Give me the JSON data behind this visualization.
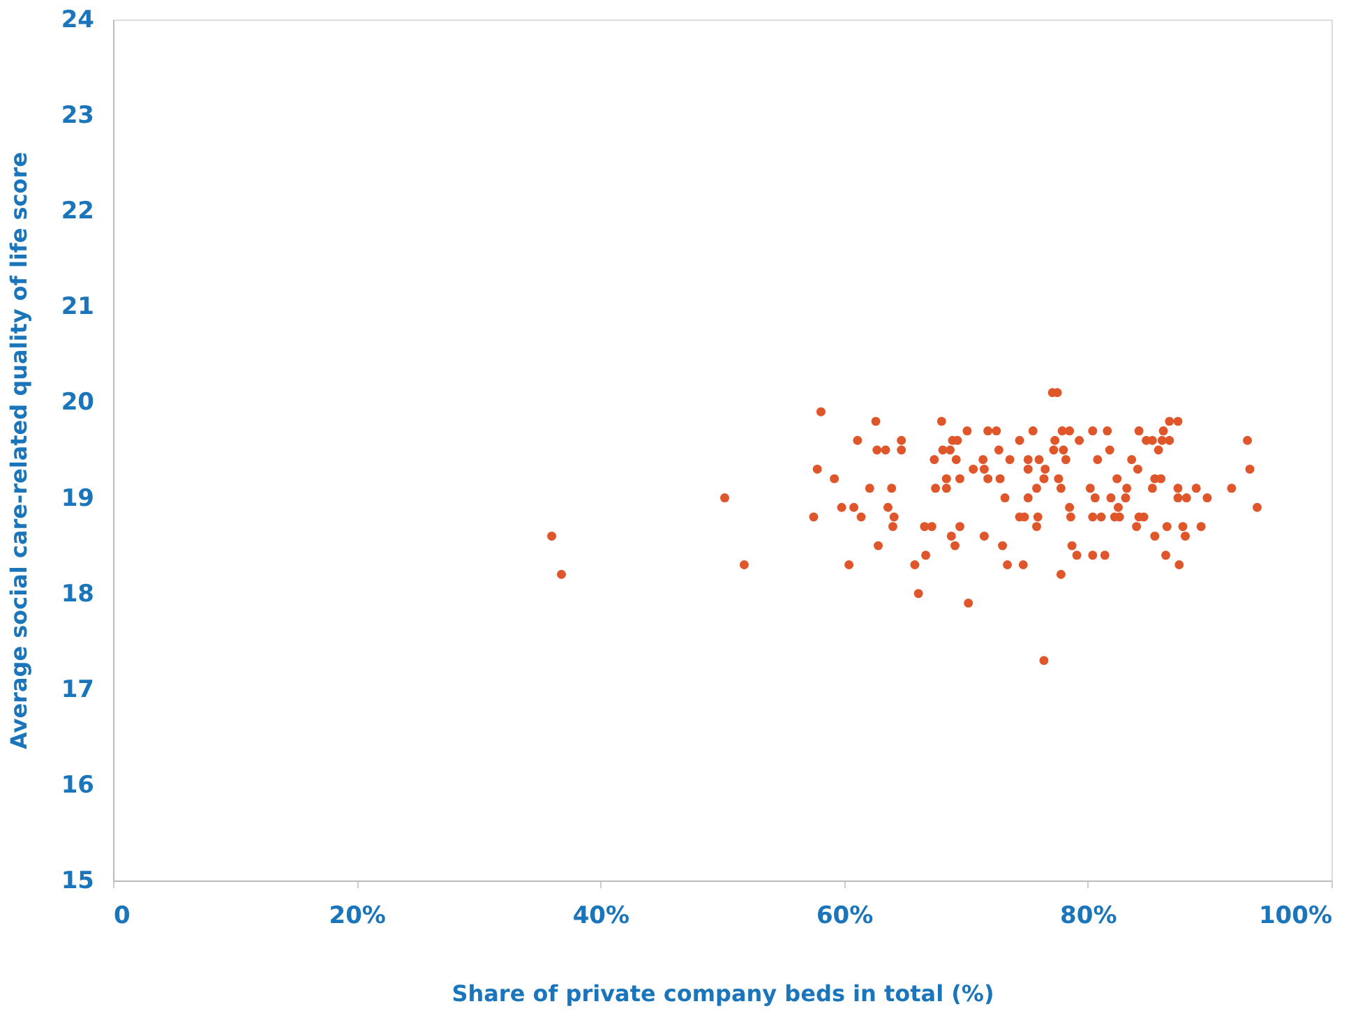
{
  "chart_data": {
    "type": "scatter",
    "xlabel": "Share of private company beds in total (%)",
    "ylabel": "Average social care-related quality of life score",
    "xlim": [
      0,
      100
    ],
    "xticks": [
      {
        "value": 0,
        "label": "0"
      },
      {
        "value": 20,
        "label": "20%"
      },
      {
        "value": 40,
        "label": "40%"
      },
      {
        "value": 60,
        "label": "60%"
      },
      {
        "value": 80,
        "label": "80%"
      },
      {
        "value": 100,
        "label": "100%"
      }
    ],
    "ylim": [
      15,
      24
    ],
    "yticks": [
      15,
      16,
      17,
      18,
      19,
      20,
      21,
      22,
      23,
      24
    ],
    "grid": false,
    "series": [
      {
        "color": "#e0562b",
        "x": [
          36.0,
          36.8,
          50.2,
          51.8,
          57.5,
          58.1,
          57.8,
          59.2,
          59.8,
          60.4,
          60.8,
          61.1,
          61.4,
          62.1,
          62.6,
          62.7,
          63.4,
          62.8,
          63.6,
          63.9,
          64.0,
          64.1,
          64.7,
          64.7,
          65.8,
          66.1,
          66.7,
          66.6,
          67.2,
          67.4,
          67.5,
          68.0,
          68.1,
          68.4,
          68.4,
          68.7,
          68.9,
          68.8,
          69.1,
          69.2,
          69.3,
          69.5,
          69.5,
          70.1,
          70.2,
          70.6,
          71.4,
          71.5,
          71.5,
          71.8,
          71.8,
          72.5,
          72.7,
          72.8,
          73.2,
          73.0,
          73.4,
          73.6,
          74.4,
          74.4,
          74.8,
          74.7,
          75.1,
          75.1,
          75.1,
          75.5,
          75.8,
          75.9,
          75.8,
          76.0,
          76.4,
          76.5,
          76.4,
          77.1,
          77.5,
          77.2,
          77.3,
          77.6,
          77.8,
          77.8,
          77.9,
          78.0,
          78.2,
          78.5,
          78.5,
          78.6,
          78.7,
          79.1,
          79.3,
          80.4,
          80.2,
          80.4,
          80.4,
          80.6,
          80.8,
          81.1,
          81.4,
          81.6,
          81.8,
          81.9,
          82.2,
          82.4,
          82.5,
          82.6,
          83.1,
          83.2,
          83.6,
          84.0,
          84.1,
          84.2,
          84.2,
          84.6,
          84.8,
          85.3,
          85.3,
          85.5,
          85.5,
          85.8,
          86.0,
          86.1,
          86.2,
          86.5,
          86.4,
          86.7,
          86.7,
          87.4,
          87.4,
          87.4,
          87.5,
          87.8,
          88.0,
          88.1,
          88.9,
          89.3,
          89.8,
          91.8,
          93.1,
          93.3,
          93.9
        ],
        "values": [
          18.6,
          18.2,
          19.0,
          18.3,
          18.8,
          19.9,
          19.3,
          19.2,
          18.9,
          18.3,
          18.9,
          19.6,
          18.8,
          19.1,
          19.8,
          19.5,
          19.5,
          18.5,
          18.9,
          19.1,
          18.7,
          18.8,
          19.6,
          19.5,
          18.3,
          18.0,
          18.4,
          18.7,
          18.7,
          19.4,
          19.1,
          19.8,
          19.5,
          19.2,
          19.1,
          19.5,
          19.6,
          18.6,
          18.5,
          19.4,
          19.6,
          18.7,
          19.2,
          19.7,
          17.9,
          19.3,
          19.4,
          19.3,
          18.6,
          19.7,
          19.2,
          19.7,
          19.5,
          19.2,
          19.0,
          18.5,
          18.3,
          19.4,
          19.6,
          18.8,
          18.8,
          18.3,
          19.4,
          19.3,
          19.0,
          19.7,
          18.7,
          18.8,
          19.1,
          19.4,
          19.2,
          19.3,
          17.3,
          20.1,
          20.1,
          19.5,
          19.6,
          19.2,
          19.1,
          18.2,
          19.7,
          19.5,
          19.4,
          19.7,
          18.9,
          18.8,
          18.5,
          18.4,
          19.6,
          19.7,
          19.1,
          18.8,
          18.4,
          19.0,
          19.4,
          18.8,
          18.4,
          19.7,
          19.5,
          19.0,
          18.8,
          19.2,
          18.9,
          18.8,
          19.0,
          19.1,
          19.4,
          18.7,
          19.3,
          18.8,
          19.7,
          18.8,
          19.6,
          19.6,
          19.1,
          19.2,
          18.6,
          19.5,
          19.2,
          19.6,
          19.7,
          18.7,
          18.4,
          19.8,
          19.6,
          19.8,
          19.0,
          19.1,
          18.3,
          18.7,
          18.6,
          19.0,
          19.1,
          18.7,
          19.0,
          19.1,
          19.6,
          19.3,
          18.9
        ]
      }
    ]
  }
}
